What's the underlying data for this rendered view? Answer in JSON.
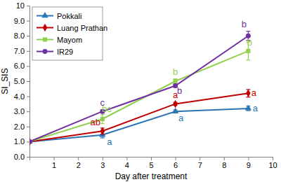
{
  "chart_data": {
    "type": "line",
    "x_label": "Day after treatment",
    "y_label": "SI_SIS",
    "x": [
      0,
      3,
      6,
      9
    ],
    "xlim": [
      0,
      10
    ],
    "xticks": [
      1,
      2,
      3,
      4,
      5,
      6,
      7,
      8,
      9,
      10
    ],
    "ylim": [
      0,
      10
    ],
    "yticks": [
      {
        "value": 0,
        "label": "0.0"
      },
      {
        "value": 1,
        "label": "1.0"
      },
      {
        "value": 2,
        "label": "2.0"
      },
      {
        "value": 3,
        "label": "3.0"
      },
      {
        "value": 4,
        "label": "4.0"
      },
      {
        "value": 5,
        "label": "5.0"
      },
      {
        "value": 6,
        "label": "6.0"
      },
      {
        "value": 7,
        "label": "7.0"
      },
      {
        "value": 8,
        "label": "8.0"
      },
      {
        "value": 9,
        "label": "9.0"
      },
      10
    ],
    "grid": false,
    "legend": "upper left",
    "series": [
      {
        "name": "Pokkali",
        "color": "#2e75b6",
        "marker": "triangle",
        "values": [
          1.0,
          1.45,
          3.0,
          3.2
        ],
        "errors": [
          0,
          0.2,
          0.1,
          0.15
        ],
        "significance": [
          null,
          "a",
          "a",
          "a"
        ]
      },
      {
        "name": "Luang Prathan",
        "color": "#c00000",
        "marker": "diamond",
        "values": [
          1.0,
          1.7,
          3.5,
          4.2
        ],
        "errors": [
          0,
          0.2,
          0.1,
          0.25
        ],
        "significance": [
          null,
          "ab",
          "a",
          "a"
        ]
      },
      {
        "name": "Mayom",
        "color": "#92d050",
        "marker": "square",
        "values": [
          1.0,
          2.5,
          5.0,
          7.0
        ],
        "errors": [
          0,
          0.3,
          0.15,
          0.6
        ],
        "significance": [
          null,
          "bc",
          "b",
          "b"
        ]
      },
      {
        "name": "IR29",
        "color": "#7030a0",
        "marker": "circle",
        "values": [
          1.0,
          3.0,
          4.7,
          8.0
        ],
        "errors": [
          0,
          0.1,
          0.1,
          0.3
        ],
        "significance": [
          null,
          "c",
          "b",
          "b"
        ]
      }
    ]
  }
}
